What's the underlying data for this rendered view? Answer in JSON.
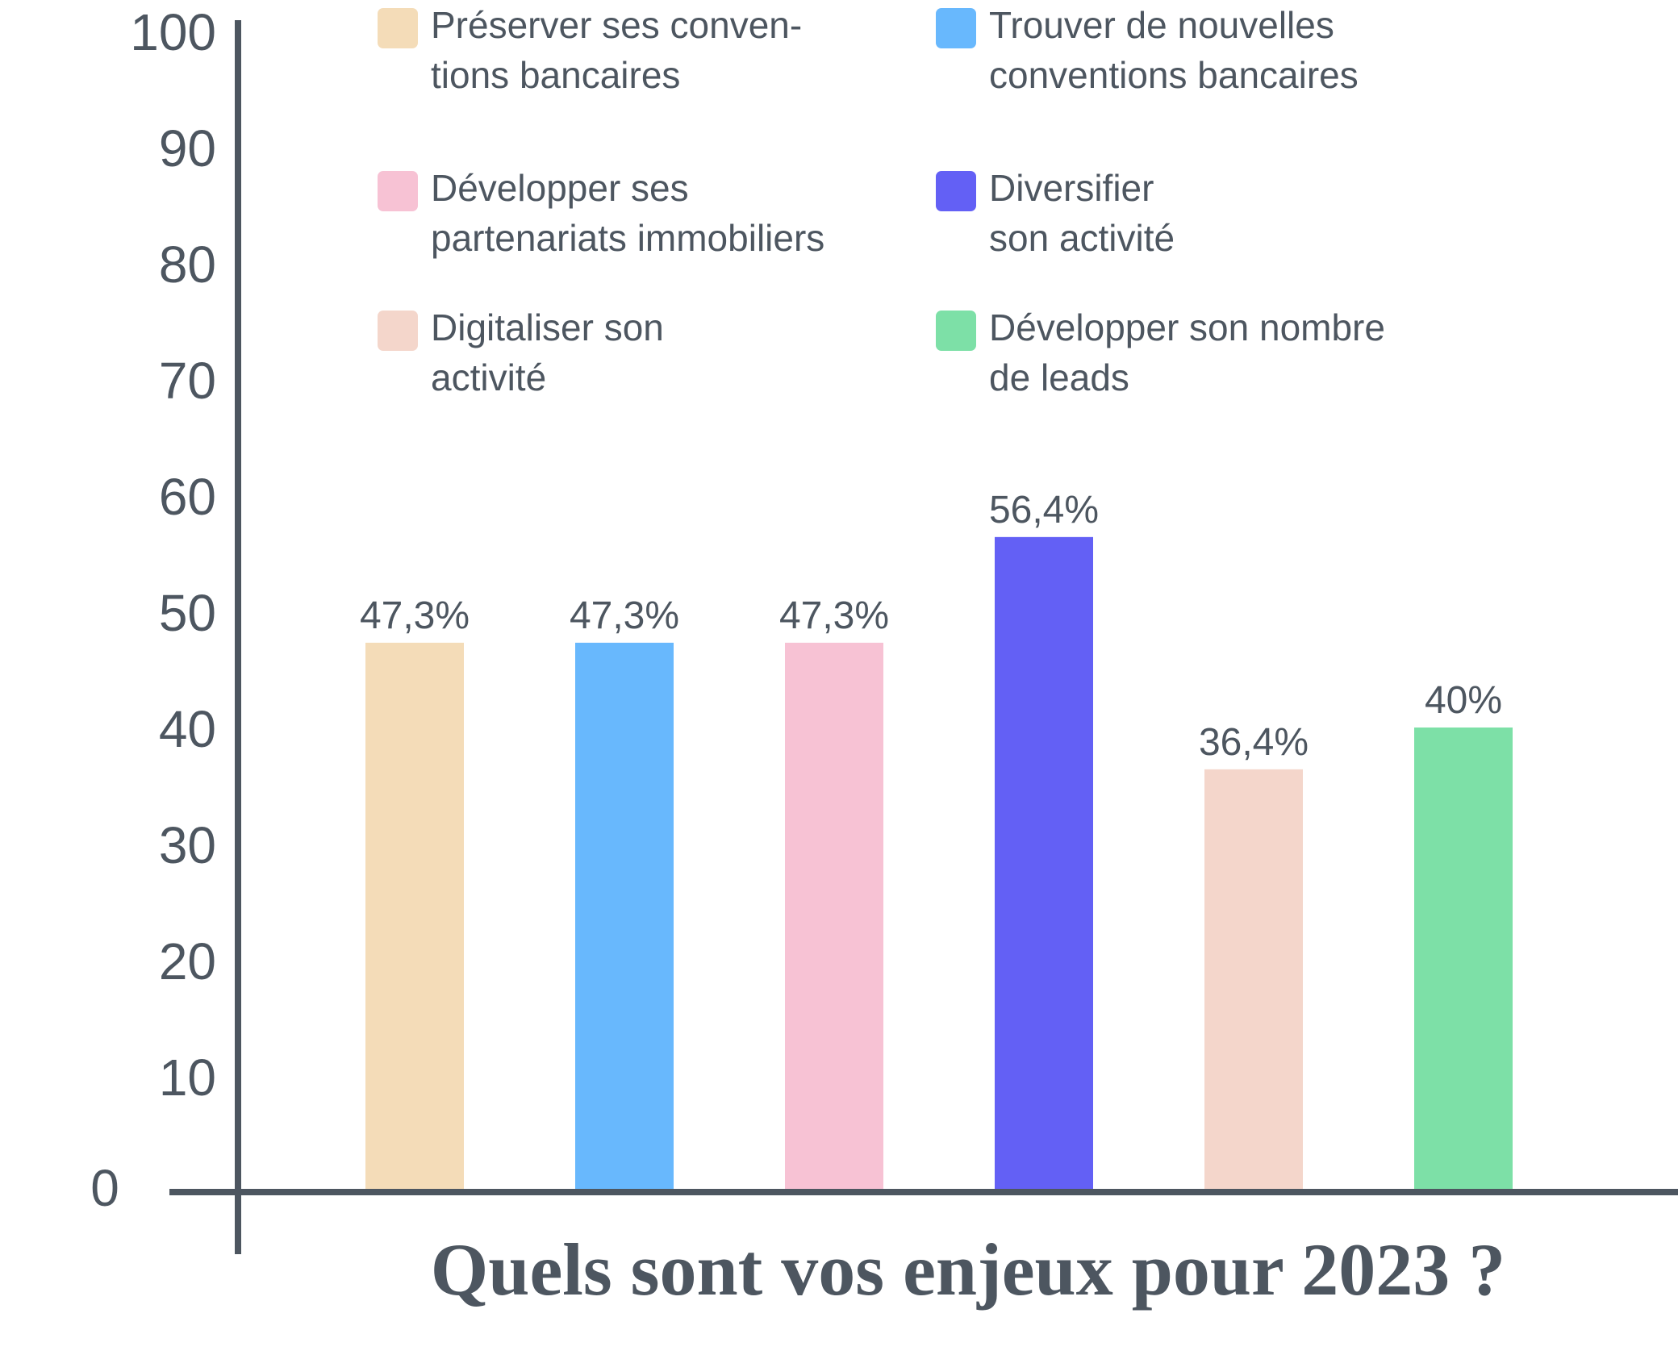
{
  "chart_data": {
    "type": "bar",
    "title": "Quels sont vos enjeux pour 2023 ?",
    "ylim": [
      0,
      100
    ],
    "yticks": [
      0,
      10,
      20,
      30,
      40,
      50,
      60,
      70,
      80,
      90,
      100
    ],
    "legend_position": "top",
    "grid": false,
    "categories": [
      "Préserver ses conven-\ntions bancaires",
      "Trouver de nouvelles\nconventions bancaires",
      "Développer ses\npartenariats immobiliers",
      "Diversifier\nson activité",
      "Digitaliser son\nactivité",
      "Développer son nombre\nde leads"
    ],
    "values": [
      47.3,
      47.3,
      47.3,
      56.4,
      36.4,
      40
    ],
    "value_labels": [
      "47,3%",
      "47,3%",
      "47,3%",
      "56,4%",
      "36,4%",
      "40%"
    ],
    "colors": [
      "#f4dcb8",
      "#68b8fd",
      "#f7c2d4",
      "#6360f5",
      "#f4d6cb",
      "#7de0a7"
    ]
  },
  "axis_color": "#4d5660"
}
